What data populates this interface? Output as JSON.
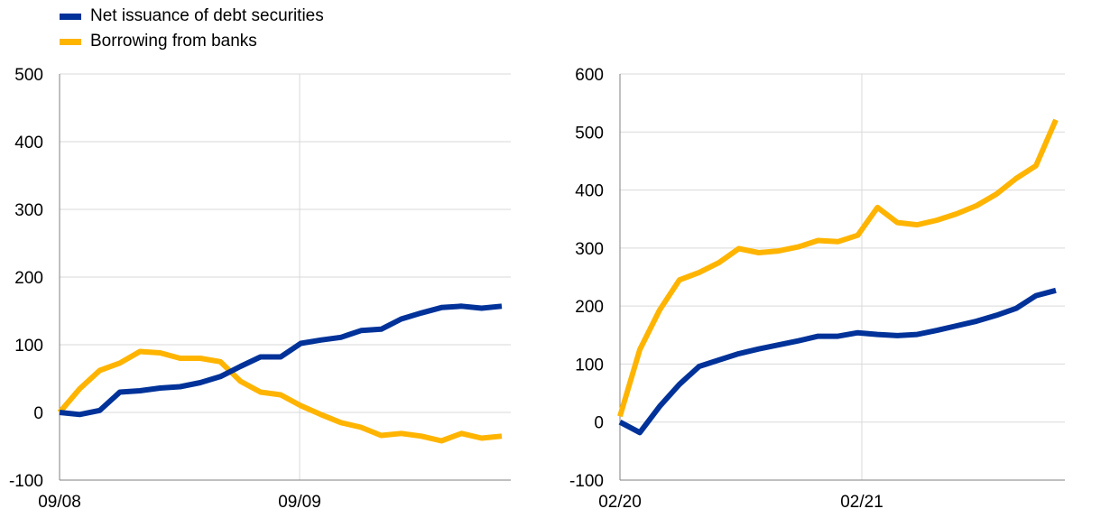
{
  "legend": [
    {
      "label": "Net issuance of debt securities",
      "color": "#003299"
    },
    {
      "label": "Borrowing from banks",
      "color": "#FFB400"
    }
  ],
  "chart_data": [
    {
      "type": "line",
      "x_ticks": [
        "09/08",
        "09/09"
      ],
      "ylim": [
        -100,
        500
      ],
      "yticks": [
        -100,
        0,
        100,
        200,
        300,
        400,
        500
      ],
      "grid": true,
      "series": [
        {
          "name": "Net issuance of debt securities",
          "color": "#003299",
          "values": [
            0,
            -3,
            3,
            30,
            32,
            36,
            38,
            44,
            53,
            68,
            82,
            82,
            102,
            107,
            111,
            121,
            123,
            138,
            147,
            155,
            157,
            154,
            157
          ]
        },
        {
          "name": "Borrowing from banks",
          "color": "#FFB400",
          "values": [
            0,
            35,
            62,
            73,
            90,
            88,
            80,
            80,
            75,
            46,
            30,
            26,
            10,
            -3,
            -15,
            -22,
            -34,
            -31,
            -35,
            -42,
            -31,
            -38,
            -35
          ]
        }
      ]
    },
    {
      "type": "line",
      "x_ticks": [
        "02/20",
        "02/21"
      ],
      "ylim": [
        -100,
        600
      ],
      "yticks": [
        -100,
        0,
        100,
        200,
        300,
        400,
        500,
        600
      ],
      "grid": true,
      "series": [
        {
          "name": "Net issuance of debt securities",
          "color": "#003299",
          "values": [
            0,
            -18,
            27,
            65,
            96,
            107,
            118,
            126,
            133,
            140,
            148,
            148,
            154,
            151,
            149,
            151,
            158,
            166,
            174,
            184,
            196,
            218,
            227
          ]
        },
        {
          "name": "Borrowing from banks",
          "color": "#FFB400",
          "values": [
            10,
            125,
            193,
            245,
            258,
            275,
            299,
            292,
            295,
            302,
            313,
            311,
            322,
            370,
            344,
            340,
            348,
            359,
            373,
            393,
            420,
            442,
            521
          ]
        }
      ]
    }
  ]
}
